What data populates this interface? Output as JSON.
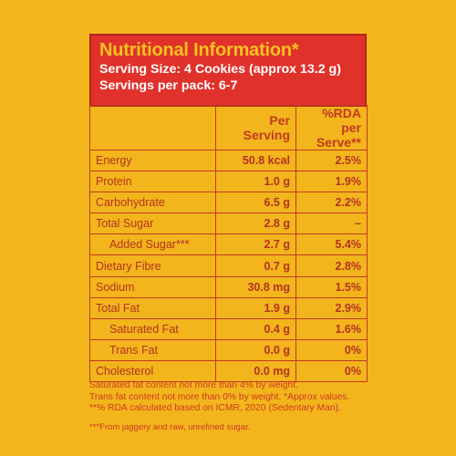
{
  "header": {
    "title": "Nutritional Information*",
    "serving_size": "Serving Size: 4 Cookies (approx 13.2 g)",
    "servings_per_pack": "Servings per pack: 6-7"
  },
  "table": {
    "col_per_serving": "Per Serving",
    "col_rda": "%RDA per Serve**",
    "rows": [
      {
        "name": "Energy",
        "per": "50.8 kcal",
        "rda": "2.5%"
      },
      {
        "name": "Protein",
        "per": "1.0 g",
        "rda": "1.9%"
      },
      {
        "name": "Carbohydrate",
        "per": "6.5 g",
        "rda": "2.2%"
      },
      {
        "name": "Total Sugar",
        "per": "2.8 g",
        "rda": "–"
      },
      {
        "name": "Added Sugar***",
        "per": "2.7 g",
        "rda": "5.4%"
      },
      {
        "name": "Dietary Fibre",
        "per": "0.7 g",
        "rda": "2.8%"
      },
      {
        "name": "Sodium",
        "per": "30.8 mg",
        "rda": "1.5%"
      },
      {
        "name": "Total Fat",
        "per": "1.9 g",
        "rda": "2.9%"
      },
      {
        "name": "Saturated Fat",
        "per": "0.4 g",
        "rda": "1.6%"
      },
      {
        "name": "Trans Fat",
        "per": "0.0 g",
        "rda": "0%"
      },
      {
        "name": "Cholesterol",
        "per": "0.0 mg",
        "rda": "0%"
      }
    ]
  },
  "footnotes": {
    "line1": "Saturated fat content not more than 4% by weight.",
    "line2": "Trans fat content not more than 0% by weight. *Approx values.",
    "line3": "**% RDA calculated based on ICMR, 2020 (Sedentary Man).",
    "line4": "***From jaggery and raw, unrefined sugar."
  }
}
